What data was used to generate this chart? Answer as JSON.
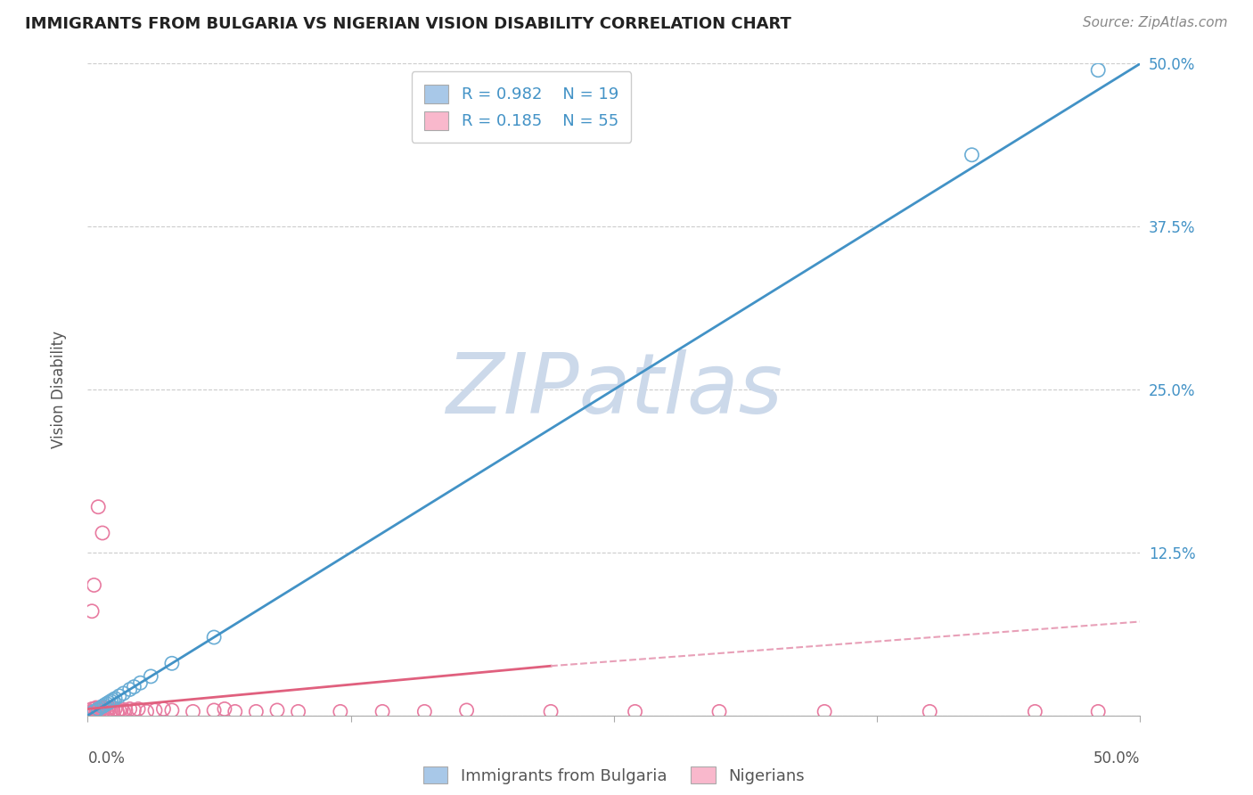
{
  "title": "IMMIGRANTS FROM BULGARIA VS NIGERIAN VISION DISABILITY CORRELATION CHART",
  "source": "Source: ZipAtlas.com",
  "ylabel": "Vision Disability",
  "x_min": 0.0,
  "x_max": 0.5,
  "y_min": 0.0,
  "y_max": 0.5,
  "y_ticks": [
    0.0,
    0.125,
    0.25,
    0.375,
    0.5
  ],
  "y_tick_labels": [
    "",
    "12.5%",
    "25.0%",
    "37.5%",
    "50.0%"
  ],
  "legend_r1": "R = 0.982",
  "legend_n1": "N = 19",
  "legend_r2": "R = 0.185",
  "legend_n2": "N = 55",
  "blue_color": "#a8c8e8",
  "blue_edge_color": "#6aadd5",
  "blue_line_color": "#4292c6",
  "pink_color": "#f9b8cc",
  "pink_edge_color": "#e87aa0",
  "pink_line_color": "#e0607e",
  "pink_dash_color": "#e8a0b8",
  "watermark_color": "#ccd9ea",
  "watermark_text": "ZIPatlas",
  "blue_scatter_x": [
    0.003,
    0.005,
    0.007,
    0.008,
    0.009,
    0.01,
    0.011,
    0.012,
    0.013,
    0.015,
    0.017,
    0.02,
    0.022,
    0.025,
    0.03,
    0.04,
    0.06,
    0.42,
    0.48
  ],
  "blue_scatter_y": [
    0.003,
    0.005,
    0.007,
    0.008,
    0.009,
    0.01,
    0.011,
    0.012,
    0.013,
    0.015,
    0.017,
    0.02,
    0.022,
    0.025,
    0.03,
    0.04,
    0.06,
    0.43,
    0.495
  ],
  "pink_scatter_x": [
    0.001,
    0.002,
    0.002,
    0.003,
    0.003,
    0.004,
    0.004,
    0.005,
    0.005,
    0.006,
    0.006,
    0.007,
    0.007,
    0.008,
    0.008,
    0.009,
    0.01,
    0.01,
    0.011,
    0.012,
    0.013,
    0.014,
    0.015,
    0.016,
    0.017,
    0.018,
    0.02,
    0.022,
    0.024,
    0.028,
    0.032,
    0.036,
    0.04,
    0.05,
    0.06,
    0.065,
    0.07,
    0.08,
    0.09,
    0.1,
    0.12,
    0.14,
    0.16,
    0.18,
    0.22,
    0.26,
    0.3,
    0.35,
    0.4,
    0.45,
    0.48,
    0.002,
    0.003,
    0.005,
    0.007
  ],
  "pink_scatter_y": [
    0.002,
    0.003,
    0.005,
    0.003,
    0.005,
    0.004,
    0.006,
    0.003,
    0.005,
    0.004,
    0.006,
    0.003,
    0.005,
    0.004,
    0.006,
    0.003,
    0.004,
    0.006,
    0.003,
    0.004,
    0.005,
    0.003,
    0.004,
    0.005,
    0.003,
    0.004,
    0.005,
    0.004,
    0.005,
    0.003,
    0.004,
    0.005,
    0.004,
    0.003,
    0.004,
    0.005,
    0.003,
    0.003,
    0.004,
    0.003,
    0.003,
    0.003,
    0.003,
    0.004,
    0.003,
    0.003,
    0.003,
    0.003,
    0.003,
    0.003,
    0.003,
    0.08,
    0.1,
    0.16,
    0.14
  ],
  "blue_line_x": [
    0.0,
    0.5
  ],
  "blue_line_y": [
    0.0,
    0.5
  ],
  "pink_solid_line_x": [
    0.0,
    0.22
  ],
  "pink_solid_line_y": [
    0.005,
    0.038
  ],
  "pink_dash_line_x": [
    0.22,
    0.5
  ],
  "pink_dash_line_y": [
    0.038,
    0.072
  ],
  "background_color": "#ffffff",
  "grid_color": "#cccccc",
  "label1": "Immigrants from Bulgaria",
  "label2": "Nigerians"
}
